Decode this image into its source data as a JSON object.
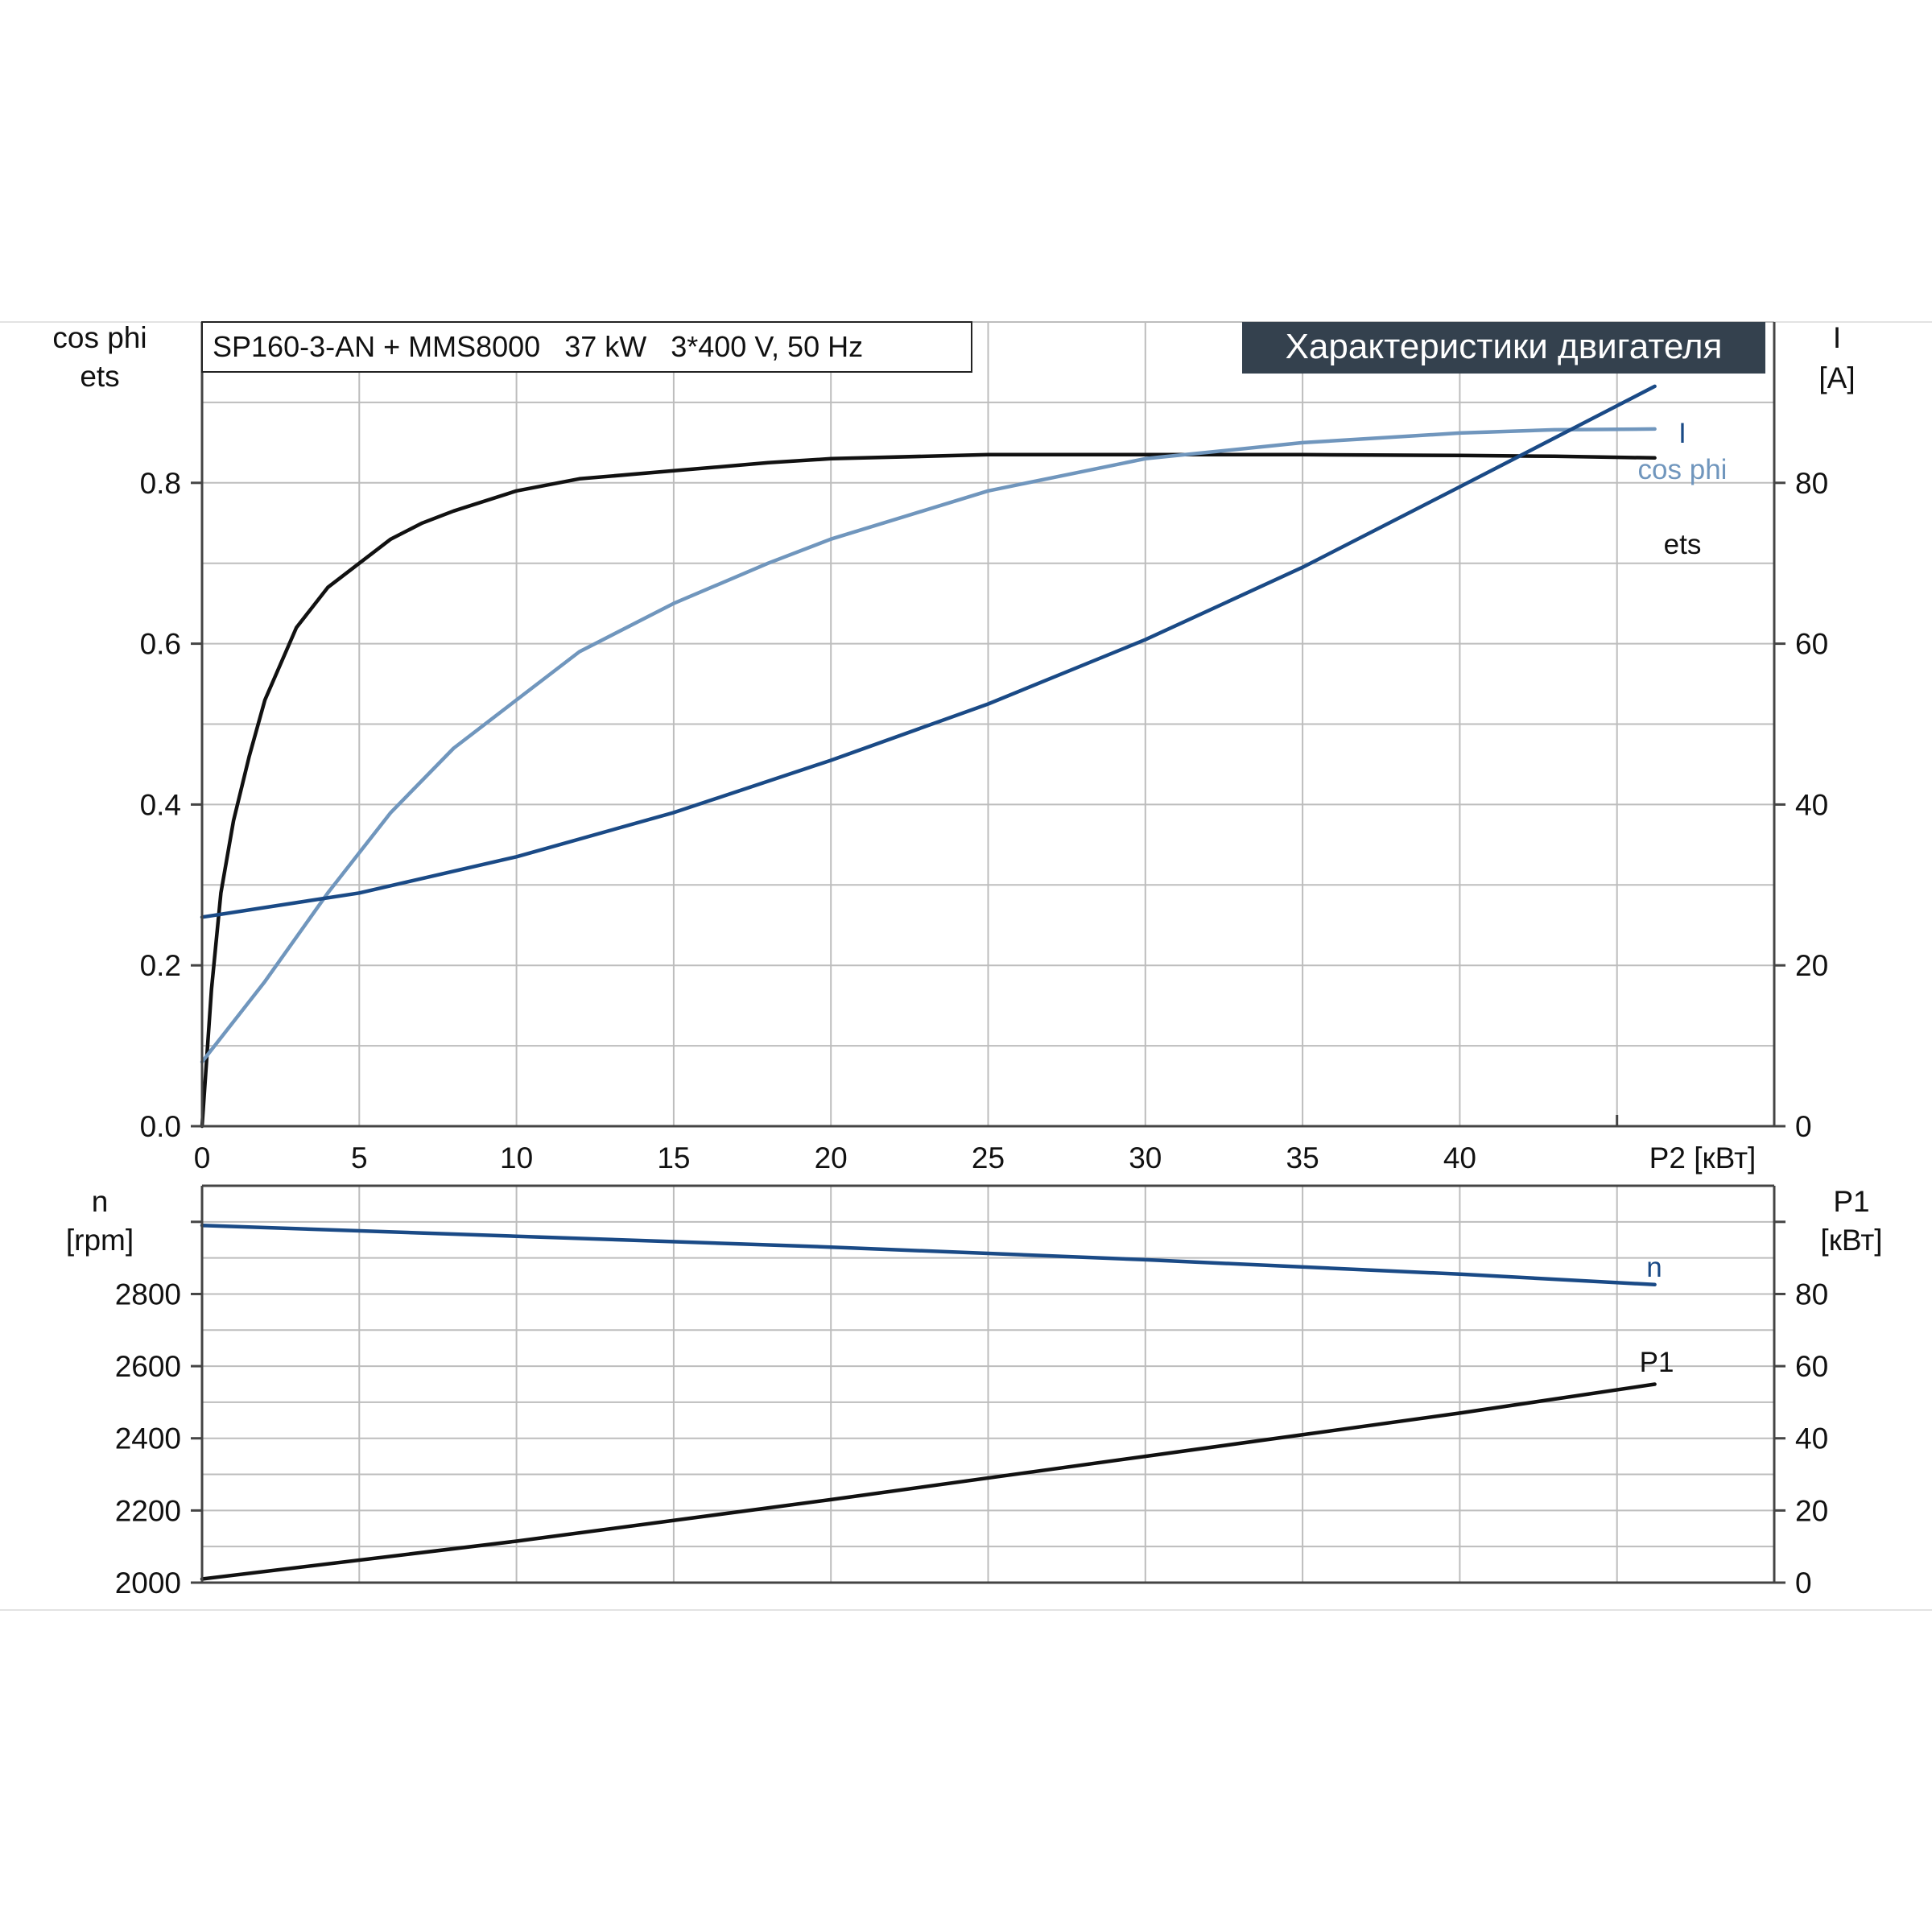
{
  "chart_data": [
    {
      "type": "line",
      "info_box": "SP160-3-AN + MMS8000   37 kW   3*400 V, 50 Hz",
      "title_badge": "Характеристики двигателя",
      "xlabel": "P2 [кВт]",
      "xlim": [
        0,
        50
      ],
      "x_ticks": [
        "0",
        "5",
        "10",
        "15",
        "20",
        "25",
        "30",
        "35",
        "40"
      ],
      "ylabel_left": [
        "cos phi",
        "ets"
      ],
      "ylim_left": [
        0,
        1.0
      ],
      "y_ticks_left": [
        "0.0",
        "0.2",
        "0.4",
        "0.6",
        "0.8"
      ],
      "ylabel_right": [
        "I",
        "[A]"
      ],
      "ylim_right": [
        0,
        100
      ],
      "y_ticks_right": [
        "0",
        "20",
        "40",
        "60",
        "80"
      ],
      "grid": true,
      "series": [
        {
          "name": "ets",
          "axis": "left",
          "color": "#111111",
          "x": [
            0,
            0.3,
            0.6,
            1,
            1.5,
            2,
            3,
            4,
            5,
            6,
            7,
            8,
            10,
            12,
            15,
            18,
            20,
            25,
            30,
            35,
            40,
            43,
            46.2
          ],
          "y": [
            0.0,
            0.17,
            0.29,
            0.38,
            0.46,
            0.53,
            0.62,
            0.67,
            0.7,
            0.73,
            0.75,
            0.765,
            0.79,
            0.805,
            0.815,
            0.825,
            0.83,
            0.835,
            0.835,
            0.835,
            0.834,
            0.833,
            0.831
          ]
        },
        {
          "name": "cos phi",
          "axis": "left",
          "color": "#7096bd",
          "x": [
            0,
            1,
            2,
            4,
            6,
            8,
            10,
            12,
            15,
            18,
            20,
            25,
            30,
            35,
            40,
            43,
            46.2
          ],
          "y": [
            0.08,
            0.13,
            0.18,
            0.29,
            0.39,
            0.47,
            0.53,
            0.59,
            0.65,
            0.7,
            0.73,
            0.79,
            0.83,
            0.85,
            0.862,
            0.866,
            0.867
          ]
        },
        {
          "name": "I",
          "axis": "right",
          "color": "#1a4a86",
          "x": [
            0,
            5,
            10,
            15,
            20,
            25,
            30,
            35,
            40,
            46.2
          ],
          "y": [
            26,
            29,
            33.5,
            39,
            45.5,
            52.5,
            60.5,
            69.5,
            79.5,
            92
          ]
        }
      ]
    },
    {
      "type": "line",
      "xlim": [
        0,
        50
      ],
      "ylabel_left": [
        "n",
        "[rpm]"
      ],
      "ylim_left": [
        2000,
        3100
      ],
      "y_ticks_left": [
        "2000",
        "2200",
        "2400",
        "2600",
        "2800"
      ],
      "ylabel_right": [
        "P1",
        "[кВт]"
      ],
      "ylim_right": [
        0,
        110
      ],
      "y_ticks_right": [
        "0",
        "20",
        "40",
        "60",
        "80"
      ],
      "grid": true,
      "series": [
        {
          "name": "n",
          "axis": "left",
          "color": "#1a4a86",
          "x": [
            0,
            10,
            20,
            30,
            40,
            46.2
          ],
          "y": [
            2990,
            2960,
            2930,
            2895,
            2855,
            2826
          ]
        },
        {
          "name": "P1",
          "axis": "right",
          "color": "#111111",
          "x": [
            0,
            10,
            20,
            30,
            40,
            46.2
          ],
          "y": [
            1,
            11.5,
            23,
            35,
            47,
            55
          ]
        }
      ]
    }
  ]
}
